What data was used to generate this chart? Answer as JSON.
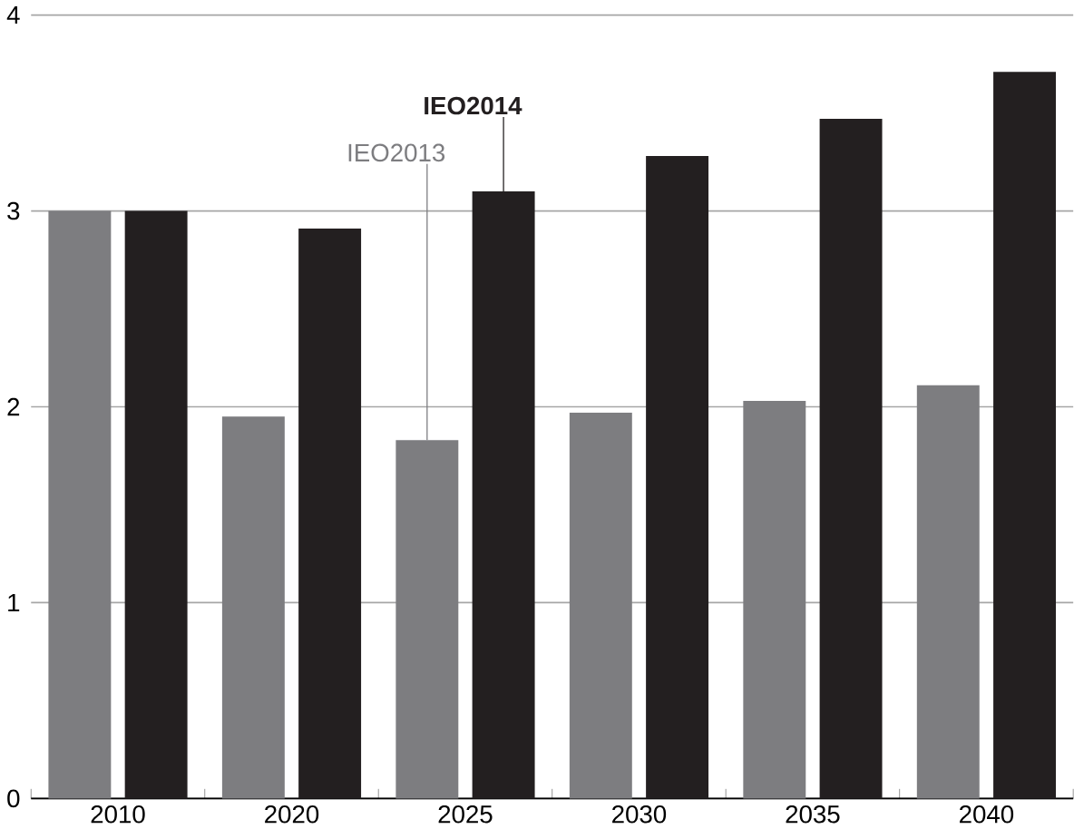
{
  "chart_data": {
    "type": "bar",
    "categories": [
      "2010",
      "2020",
      "2025",
      "2030",
      "2035",
      "2040"
    ],
    "series": [
      {
        "name": "IEO2013",
        "color": "#7d7d80",
        "values": [
          3.0,
          1.95,
          1.83,
          1.97,
          2.03,
          2.11
        ]
      },
      {
        "name": "IEO2014",
        "color": "#231f20",
        "values": [
          3.0,
          2.91,
          3.1,
          3.28,
          3.47,
          3.71
        ]
      }
    ],
    "ylim": [
      0,
      4
    ],
    "yticks": [
      0,
      1,
      2,
      3,
      4
    ],
    "grid": "y",
    "legend": false
  }
}
